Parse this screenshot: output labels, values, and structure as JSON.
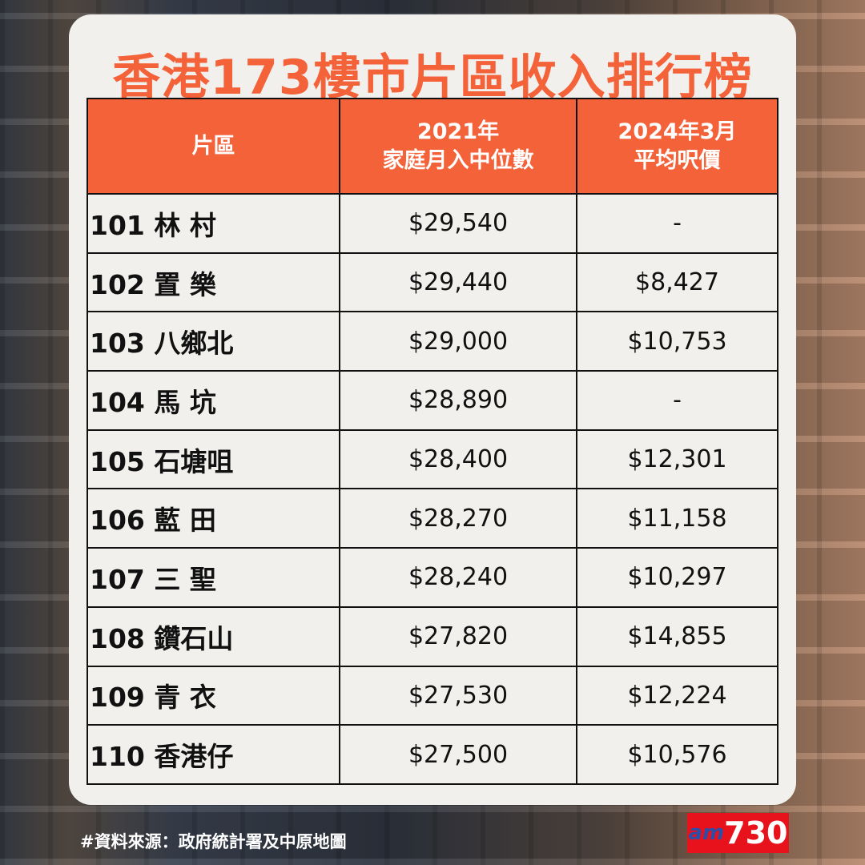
{
  "title": "香港173樓市片區收入排行榜",
  "table": {
    "headers": [
      "片區",
      "2021年\n家庭月入中位數",
      "2024年3月\n平均呎價"
    ],
    "rows": [
      [
        "101 林 村",
        "$29,540",
        "-"
      ],
      [
        "102 置 樂",
        "$29,440",
        "$8,427"
      ],
      [
        "103 八鄉北",
        "$29,000",
        "$10,753"
      ],
      [
        "104 馬 坑",
        "$28,890",
        "-"
      ],
      [
        "105 石塘咀",
        "$28,400",
        "$12,301"
      ],
      [
        "106 藍 田",
        "$28,270",
        "$11,158"
      ],
      [
        "107 三 聖",
        "$28,240",
        "$10,297"
      ],
      [
        "108 鑽石山",
        "$27,820",
        "$14,855"
      ],
      [
        "109 青 衣",
        "$27,530",
        "$12,224"
      ],
      [
        "110 香港仔",
        "$27,500",
        "$10,576"
      ]
    ]
  },
  "footer": {
    "source": "#資料來源：政府統計署及中原地圖"
  },
  "logo": {
    "text": "am730"
  },
  "colors": {
    "accent": "#f4623a",
    "card": "#f1f0ed",
    "logo": "#e8121d"
  }
}
